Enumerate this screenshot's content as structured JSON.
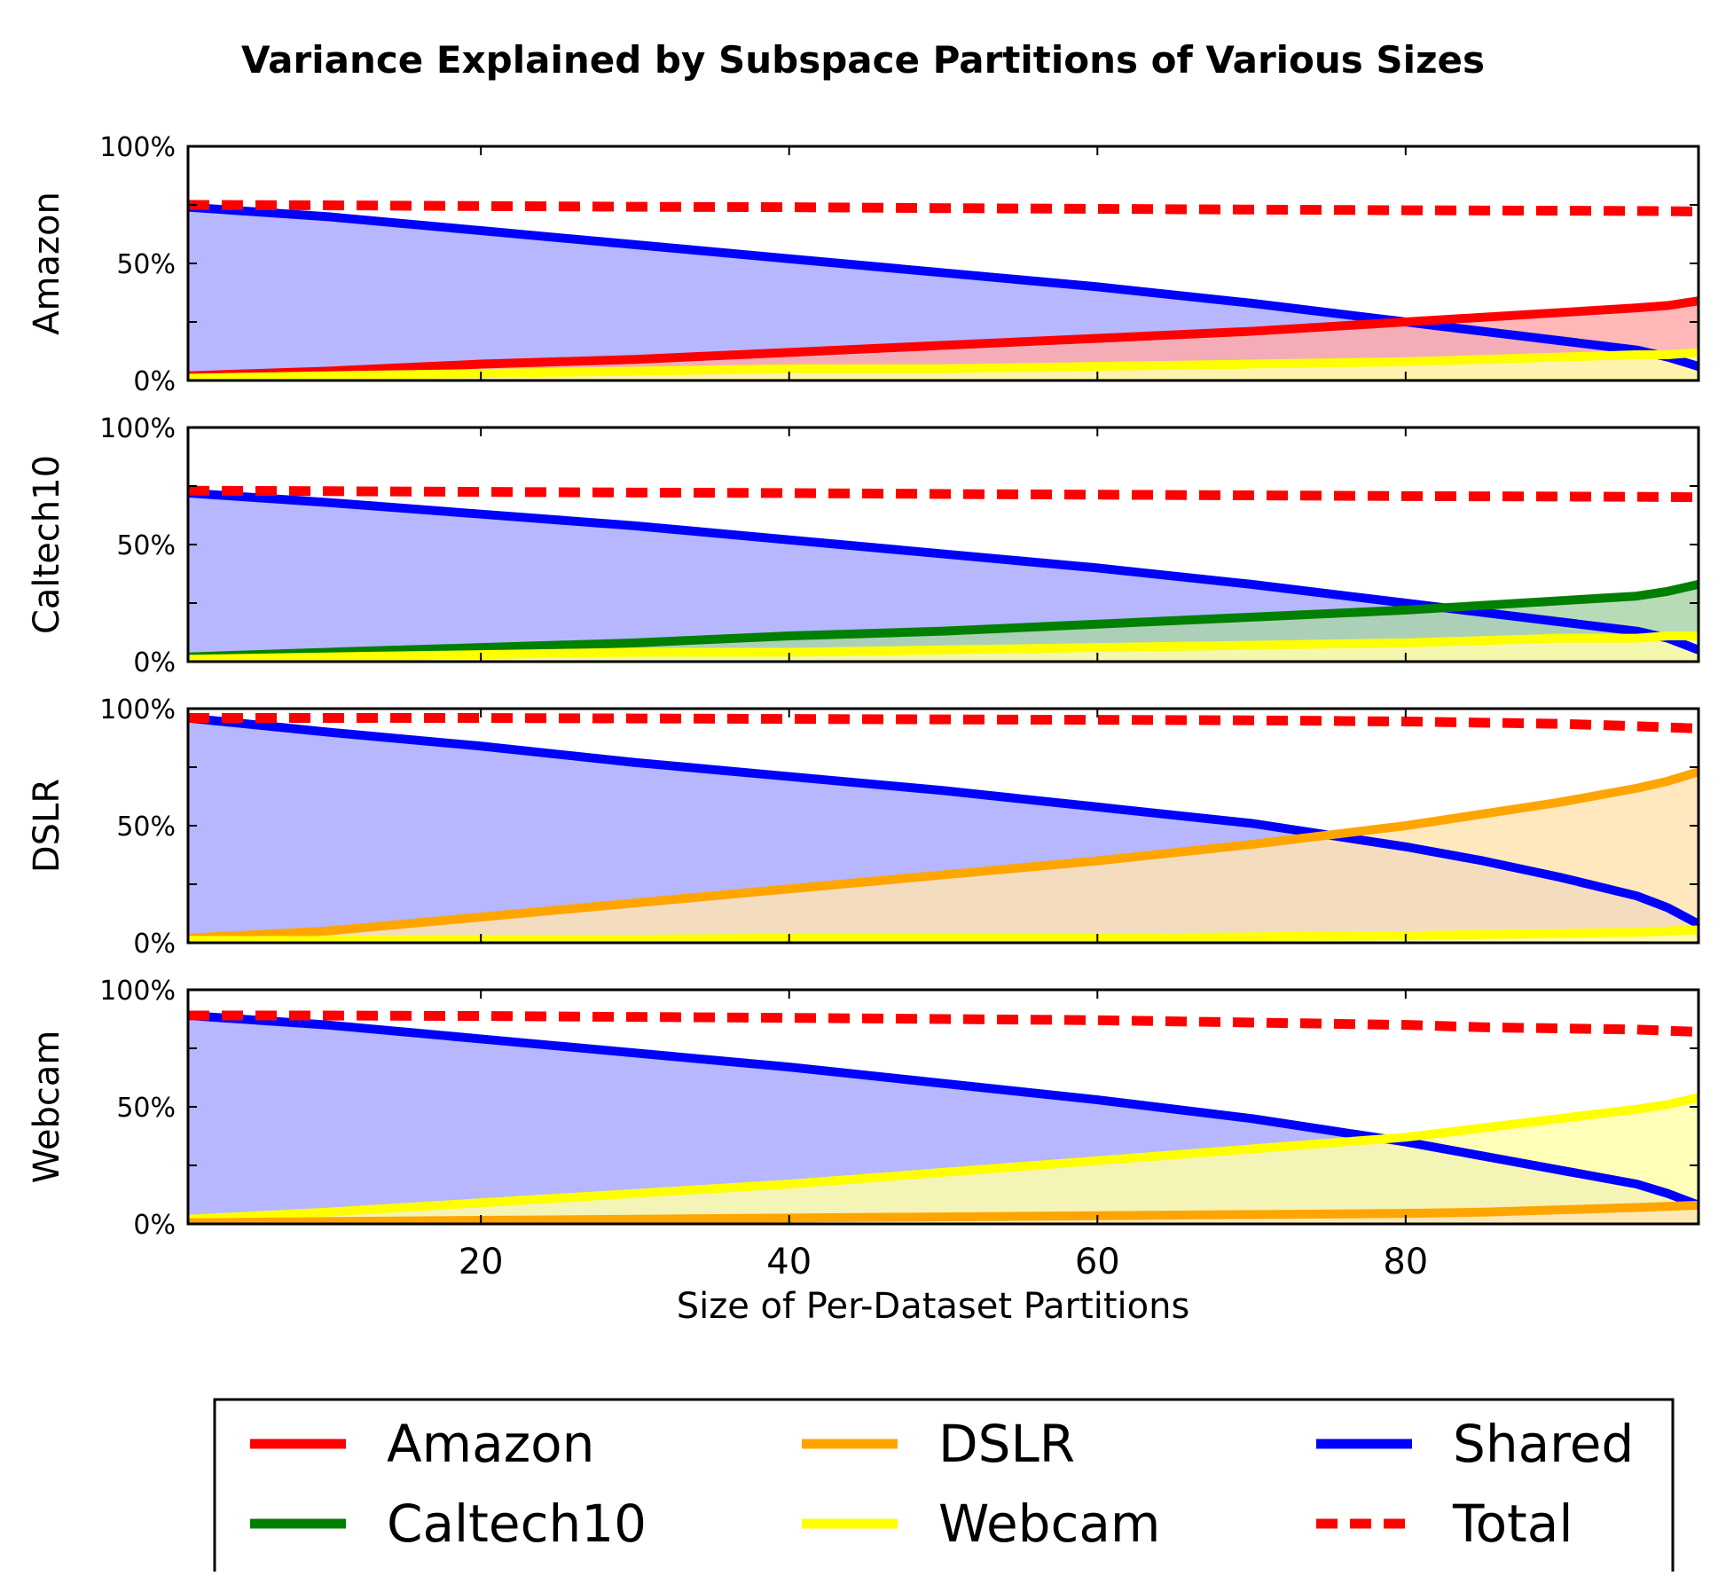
{
  "chart_data": {
    "type": "area",
    "title": "Variance Explained by Subspace Partitions of Various Sizes",
    "xlabel": "Size of Per-Dataset Partitions",
    "xlim": [
      1,
      99
    ],
    "x_ticks": [
      20,
      40,
      60,
      80
    ],
    "x_tick_labels": [
      "20",
      "40",
      "60",
      "80"
    ],
    "ylim": [
      0,
      100
    ],
    "y_tick_labels": [
      "0%",
      "50%",
      "100%"
    ],
    "x": [
      1,
      10,
      20,
      30,
      40,
      50,
      60,
      70,
      80,
      85,
      90,
      95,
      97,
      99
    ],
    "series_styles": {
      "Amazon": {
        "color": "#ff0000",
        "fill": "#ffaaaa"
      },
      "Caltech10": {
        "color": "#008000",
        "fill": "#aad5aa"
      },
      "DSLR": {
        "color": "#ffa500",
        "fill": "#ffe4b3"
      },
      "Webcam": {
        "color": "#ffff00",
        "fill": "#ffffaa"
      },
      "Shared": {
        "color": "#0000ff",
        "fill": "#aaaaff"
      },
      "Total": {
        "color": "#ff0000",
        "dash": true
      }
    },
    "legend": {
      "placement": "bottom",
      "columns": 3,
      "entries": [
        "Amazon",
        "Caltech10",
        "DSLR",
        "Webcam",
        "Shared",
        "Total"
      ]
    },
    "panels": [
      {
        "ylabel": "Amazon",
        "series": [
          {
            "name": "Shared",
            "values": [
              74,
              70,
              64,
              58,
              52,
              46,
              40,
              33,
              25,
              21,
              17,
              13,
              10,
              6
            ]
          },
          {
            "name": "Amazon",
            "values": [
              2,
              4,
              7,
              9,
              12,
              15,
              18,
              21,
              25,
              27,
              29,
              31,
              32,
              34
            ]
          },
          {
            "name": "Webcam",
            "values": [
              1,
              2,
              3,
              4,
              5,
              5,
              6,
              7,
              8,
              9,
              10,
              11,
              11,
              12
            ]
          },
          {
            "name": "Total",
            "values": [
              75,
              74.8,
              74.5,
              74.2,
              74,
              73.6,
              73.3,
              73,
              72.7,
              72.6,
              72.5,
              72.4,
              72.3,
              72.2
            ]
          }
        ]
      },
      {
        "ylabel": "Caltech10",
        "series": [
          {
            "name": "Shared",
            "values": [
              72,
              68,
              63,
              58,
              52,
              46,
              40,
              33,
              25,
              21,
              17,
              13,
              10,
              5
            ]
          },
          {
            "name": "Caltech10",
            "values": [
              2,
              4,
              6,
              8,
              11,
              13,
              16,
              19,
              22,
              24,
              26,
              28,
              30,
              33
            ]
          },
          {
            "name": "Webcam",
            "values": [
              1,
              2,
              3,
              4,
              4,
              5,
              6,
              7,
              8,
              9,
              10,
              10,
              11,
              11
            ]
          },
          {
            "name": "Total",
            "values": [
              73,
              72.8,
              72.5,
              72.2,
              72,
              71.6,
              71.3,
              71,
              70.7,
              70.6,
              70.5,
              70.4,
              70.3,
              70.2
            ]
          }
        ]
      },
      {
        "ylabel": "DSLR",
        "series": [
          {
            "name": "Shared",
            "values": [
              96,
              90,
              84,
              77,
              71,
              65,
              58,
              51,
              41,
              35,
              28,
              20,
              15,
              8
            ]
          },
          {
            "name": "DSLR",
            "values": [
              2,
              5,
              11,
              17,
              23,
              29,
              35,
              42,
              50,
              55,
              60,
              66,
              69,
              73
            ]
          },
          {
            "name": "Webcam",
            "values": [
              1,
              1,
              1.5,
              1.5,
              2,
              2,
              2,
              2.5,
              3,
              3.5,
              4,
              4.5,
              5,
              5.5
            ]
          },
          {
            "name": "Total",
            "values": [
              96,
              96,
              96,
              95.8,
              95.6,
              95.4,
              95.2,
              95,
              94.5,
              94,
              93.5,
              92.5,
              92,
              91.5
            ]
          }
        ]
      },
      {
        "ylabel": "Webcam",
        "series": [
          {
            "name": "Shared",
            "values": [
              89,
              85,
              79,
              73,
              67,
              60,
              53,
              45,
              35,
              29,
              23,
              17,
              13,
              8
            ]
          },
          {
            "name": "Webcam",
            "values": [
              2,
              5,
              9,
              13,
              17,
              22,
              27,
              32,
              37,
              41,
              45,
              49,
              51,
              54
            ]
          },
          {
            "name": "DSLR",
            "values": [
              0.5,
              1,
              1.5,
              2,
              2.5,
              3,
              3.5,
              4,
              4.5,
              5,
              6,
              7,
              7.5,
              8
            ]
          },
          {
            "name": "Total",
            "values": [
              89,
              89,
              88.8,
              88.4,
              88,
              87.5,
              87,
              86,
              85,
              84,
              83.5,
              83,
              82.5,
              82
            ]
          }
        ]
      }
    ]
  }
}
